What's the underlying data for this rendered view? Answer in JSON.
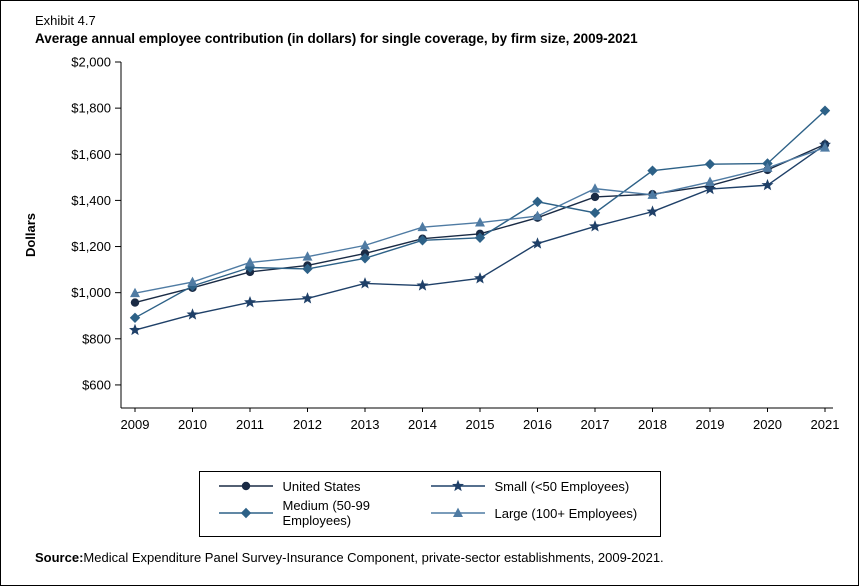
{
  "header": {
    "exhibit_label": "Exhibit 4.7",
    "title": "Average annual employee contribution (in dollars) for single coverage, by firm size, 2009-2021"
  },
  "source": {
    "label": "Source:",
    "text": "Medical Expenditure Panel Survey-Insurance Component, private-sector establishments, 2009-2021."
  },
  "chart_data": {
    "type": "line",
    "title": "Average annual employee contribution (in dollars) for single coverage, by firm size, 2009-2021",
    "xlabel": "",
    "ylabel": "Dollars",
    "ylim": [
      500,
      2000
    ],
    "yticks": [
      600,
      800,
      1000,
      1200,
      1400,
      1600,
      1800,
      2000
    ],
    "ytick_labels": [
      "$600",
      "$800",
      "$1,000",
      "$1,200",
      "$1,400",
      "$1,600",
      "$1,800",
      "$2,000"
    ],
    "grid": false,
    "legend_position": "bottom",
    "categories": [
      "2009",
      "2010",
      "2011",
      "2012",
      "2013",
      "2014",
      "2015",
      "2016",
      "2017",
      "2018",
      "2019",
      "2020",
      "2021"
    ],
    "series": [
      {
        "name": "United States",
        "marker": "circle",
        "color": "#1a2b45",
        "values": [
          957,
          1021,
          1090,
          1118,
          1170,
          1234,
          1255,
          1325,
          1415,
          1427,
          1464,
          1532,
          1643
        ]
      },
      {
        "name": "Medium (50-99 Employees)",
        "marker": "diamond",
        "color": "#2d6187",
        "values": [
          891,
          1029,
          1109,
          1103,
          1149,
          1227,
          1238,
          1394,
          1346,
          1529,
          1557,
          1560,
          1789
        ]
      },
      {
        "name": "Small (<50 Employees)",
        "marker": "star",
        "color": "#1f4068",
        "values": [
          838,
          905,
          958,
          975,
          1040,
          1031,
          1062,
          1213,
          1287,
          1351,
          1449,
          1466,
          1641
        ]
      },
      {
        "name": "Large (100+ Employees)",
        "marker": "triangle",
        "color": "#4f7ba3",
        "values": [
          998,
          1046,
          1131,
          1156,
          1205,
          1284,
          1304,
          1332,
          1451,
          1424,
          1480,
          1541,
          1629
        ]
      }
    ]
  }
}
